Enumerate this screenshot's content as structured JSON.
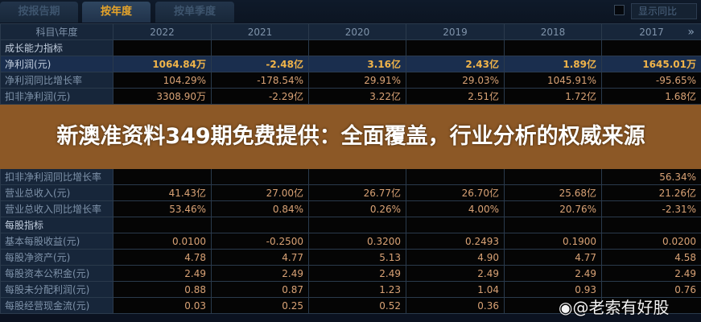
{
  "tabs": [
    {
      "label": "按报告期"
    },
    {
      "label": "按年度"
    },
    {
      "label": "按单季度"
    }
  ],
  "active_tab": 1,
  "toggle": {
    "label": "显示同比",
    "checked": false
  },
  "table": {
    "header": [
      "科目\\年度",
      "2022",
      "2021",
      "2020",
      "2019",
      "2018",
      "2017"
    ],
    "more_icon": "double-chevron-right",
    "rows": [
      {
        "type": "section",
        "label": "成长能力指标",
        "values": [
          "",
          "",
          "",
          "",
          "",
          ""
        ]
      },
      {
        "type": "highlight",
        "label": "净利润(元)",
        "values": [
          "1064.84万",
          "-2.48亿",
          "3.16亿",
          "2.43亿",
          "1.89亿",
          "1645.01万"
        ]
      },
      {
        "label": "净利润同比增长率",
        "values": [
          "104.29%",
          "-178.54%",
          "29.91%",
          "29.03%",
          "1045.91%",
          "-95.65%"
        ]
      },
      {
        "label": "扣非净利润(元)",
        "values": [
          "3308.90万",
          "-2.29亿",
          "3.22亿",
          "2.51亿",
          "1.72亿",
          "1.68亿"
        ]
      },
      {
        "label": "扣非净利润同比增长率",
        "values": [
          "",
          "",
          "",
          "",
          "",
          "56.34%"
        ]
      },
      {
        "label": "营业总收入(元)",
        "values": [
          "41.43亿",
          "27.00亿",
          "26.77亿",
          "26.70亿",
          "25.68亿",
          "21.26亿"
        ]
      },
      {
        "label": "营业总收入同比增长率",
        "values": [
          "53.46%",
          "0.84%",
          "0.26%",
          "4.00%",
          "20.76%",
          "-2.31%"
        ]
      },
      {
        "type": "section",
        "label": "每股指标",
        "values": [
          "",
          "",
          "",
          "",
          "",
          ""
        ]
      },
      {
        "label": "基本每股收益(元)",
        "values": [
          "0.0100",
          "-0.2500",
          "0.3200",
          "0.2493",
          "0.1900",
          "0.0200"
        ]
      },
      {
        "label": "每股净资产(元)",
        "values": [
          "4.78",
          "4.77",
          "5.13",
          "4.90",
          "4.77",
          "4.58"
        ]
      },
      {
        "label": "每股资本公积金(元)",
        "values": [
          "2.49",
          "2.49",
          "2.49",
          "2.49",
          "2.49",
          "2.49"
        ]
      },
      {
        "label": "每股未分配利润(元)",
        "values": [
          "0.88",
          "0.87",
          "1.23",
          "1.04",
          "0.93",
          "0.76"
        ]
      },
      {
        "label": "每股经营现金流(元)",
        "values": [
          "0.03",
          "0.25",
          "0.52",
          "0.36",
          "",
          ""
        ]
      }
    ]
  },
  "banner": {
    "text": "新澳准资料349期免费提供：全面覆盖，行业分析的权威来源"
  },
  "watermark": {
    "text": "@老索有好股",
    "icon": "weibo-icon"
  }
}
